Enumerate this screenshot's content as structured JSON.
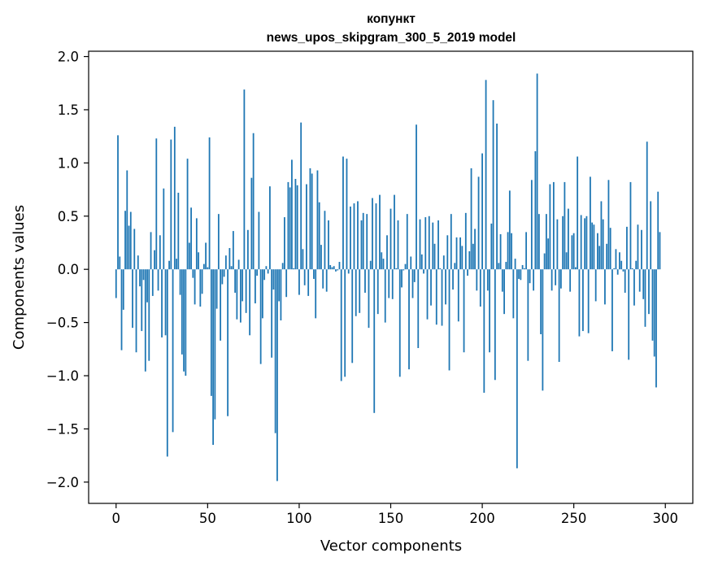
{
  "chart_data": {
    "type": "bar",
    "title_line1": "копункт",
    "title_line2": "news_upos_skipgram_300_5_2019 model",
    "xlabel": "Vector components",
    "ylabel": "Components values",
    "xlim": [
      -15,
      315
    ],
    "ylim": [
      -2.2,
      2.05
    ],
    "xticks": [
      0,
      50,
      100,
      150,
      200,
      250,
      300
    ],
    "xtick_labels": [
      "0",
      "50",
      "100",
      "150",
      "200",
      "250",
      "300"
    ],
    "yticks": [
      2.0,
      1.5,
      1.0,
      0.5,
      0.0,
      -0.5,
      -1.0,
      -1.5,
      -2.0
    ],
    "ytick_labels": [
      "2.0",
      "1.5",
      "1.0",
      "0.5",
      "0.0",
      "−0.5",
      "−1.0",
      "−1.5",
      "−2.0"
    ],
    "bar_color": "#1f77b4",
    "values": [
      -0.27,
      1.26,
      0.12,
      -0.76,
      -0.38,
      0.55,
      0.93,
      0.41,
      0.54,
      -0.55,
      0.38,
      -0.78,
      0.13,
      -0.16,
      -0.58,
      -0.1,
      -0.96,
      -0.31,
      -0.86,
      0.35,
      -0.25,
      0.18,
      1.23,
      -0.2,
      0.32,
      -0.64,
      0.76,
      -0.62,
      -1.76,
      0.08,
      1.22,
      -1.53,
      1.34,
      0.1,
      0.72,
      -0.24,
      -0.8,
      -0.96,
      -1.0,
      1.04,
      0.25,
      0.58,
      -0.08,
      -0.33,
      0.48,
      0.16,
      -0.35,
      -0.23,
      0.05,
      0.25,
      0.02,
      1.24,
      -1.19,
      -1.65,
      -1.41,
      -0.37,
      0.52,
      -0.67,
      -0.14,
      -0.07,
      0.13,
      -1.38,
      0.2,
      0.03,
      0.36,
      -0.22,
      -0.47,
      0.09,
      -0.5,
      -0.3,
      1.69,
      -0.41,
      0.37,
      -0.62,
      0.86,
      1.28,
      -0.32,
      -0.06,
      0.54,
      -0.89,
      -0.46,
      -0.1,
      0.03,
      -0.04,
      0.78,
      -0.83,
      -0.19,
      -1.54,
      -1.99,
      -0.3,
      -0.48,
      0.06,
      0.49,
      -0.26,
      0.82,
      0.77,
      1.03,
      0.01,
      0.85,
      0.79,
      -0.24,
      1.38,
      0.19,
      -0.15,
      0.8,
      -0.25,
      0.95,
      0.9,
      -0.09,
      -0.46,
      0.93,
      0.63,
      0.23,
      -0.18,
      0.55,
      -0.21,
      0.46,
      0.04,
      0.02,
      0.03,
      -0.02,
      -0.01,
      0.07,
      -1.05,
      1.06,
      -1.01,
      1.04,
      -0.04,
      0.59,
      -0.88,
      0.62,
      -0.44,
      0.64,
      -0.41,
      0.46,
      0.53,
      -0.22,
      0.52,
      -0.55,
      0.08,
      0.67,
      -1.35,
      0.62,
      -0.42,
      0.7,
      0.16,
      0.1,
      -0.5,
      0.32,
      -0.27,
      0.57,
      -0.28,
      0.7,
      0.01,
      0.46,
      -1.01,
      -0.17,
      -0.01,
      0.05,
      0.52,
      -0.94,
      0.12,
      -0.27,
      -0.12,
      1.36,
      -0.74,
      0.47,
      0.14,
      -0.04,
      0.49,
      -0.47,
      0.5,
      -0.34,
      0.44,
      0.24,
      -0.52,
      0.46,
      0.01,
      -0.53,
      0.13,
      -0.33,
      0.32,
      -0.95,
      0.52,
      -0.19,
      0.06,
      0.3,
      -0.49,
      0.3,
      0.22,
      -0.78,
      0.53,
      -0.06,
      0.17,
      0.95,
      0.24,
      0.38,
      -0.2,
      0.87,
      -0.35,
      1.09,
      -1.16,
      1.78,
      -0.2,
      -0.78,
      0.43,
      1.59,
      -1.04,
      1.37,
      0.06,
      0.33,
      -0.21,
      -0.42,
      0.07,
      0.35,
      0.74,
      0.34,
      -0.46,
      0.1,
      -1.87,
      -0.09,
      -0.1,
      0.04,
      0.01,
      0.35,
      -0.86,
      -0.13,
      0.84,
      -0.2,
      1.11,
      1.84,
      0.52,
      -0.61,
      -1.14,
      0.15,
      0.52,
      0.29,
      0.8,
      -0.2,
      0.82,
      -0.15,
      0.47,
      -0.87,
      -0.18,
      0.5,
      0.82,
      0.16,
      0.57,
      -0.21,
      0.32,
      0.34,
      0.02,
      1.06,
      -0.63,
      0.51,
      -0.58,
      0.48,
      0.5,
      -0.6,
      0.87,
      0.44,
      0.42,
      -0.3,
      0.34,
      0.22,
      0.64,
      0.47,
      -0.33,
      0.24,
      0.84,
      0.39,
      -0.77,
      0.01,
      0.19,
      -0.05,
      0.16,
      0.08,
      -0.02,
      -0.22,
      0.4,
      -0.85,
      0.82,
      0.01,
      -0.34,
      0.08,
      0.42,
      -0.21,
      0.37,
      -0.28,
      -0.54,
      1.2,
      -0.42,
      0.64,
      -0.67,
      -0.82,
      -1.11,
      0.73,
      0.35
    ]
  }
}
